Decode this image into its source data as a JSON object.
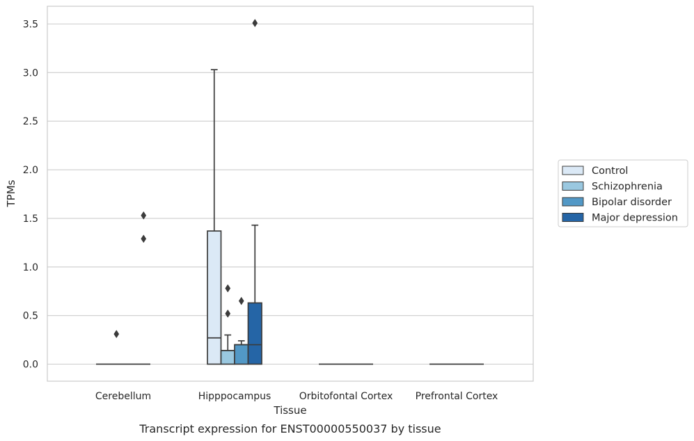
{
  "caption": "Transcript expression for ENST00000550037 by tissue",
  "chart_data": {
    "type": "box",
    "xlabel": "Tissue",
    "ylabel": "TPMs",
    "ylim": [
      -0.17,
      3.68
    ],
    "yticks": [
      "0.0",
      "0.5",
      "1.0",
      "1.5",
      "2.0",
      "2.5",
      "3.0",
      "3.5"
    ],
    "ytick_values": [
      0,
      0.5,
      1.0,
      1.5,
      2.0,
      2.5,
      3.0,
      3.5
    ],
    "grid": "horizontal",
    "legend_position": "right",
    "categories": [
      "Cerebellum",
      "Hipppocampus",
      "Orbitofontal Cortex",
      "Prefrontal Cortex"
    ],
    "series": [
      {
        "name": "Control",
        "color": "#dbe9f6",
        "boxes": [
          {
            "q1": 0,
            "median": 0,
            "q3": 0,
            "whisker_low": 0,
            "whisker_high": 0,
            "outliers": []
          },
          {
            "q1": 0,
            "median": 0.27,
            "q3": 1.37,
            "whisker_low": 0,
            "whisker_high": 3.03,
            "outliers": []
          },
          {
            "q1": 0,
            "median": 0,
            "q3": 0,
            "whisker_low": 0,
            "whisker_high": 0,
            "outliers": []
          },
          {
            "q1": 0,
            "median": 0,
            "q3": 0,
            "whisker_low": 0,
            "whisker_high": 0,
            "outliers": []
          }
        ]
      },
      {
        "name": "Schizophrenia",
        "color": "#9ac8e0",
        "boxes": [
          {
            "q1": 0,
            "median": 0,
            "q3": 0,
            "whisker_low": 0,
            "whisker_high": 0,
            "outliers": [
              0.31
            ]
          },
          {
            "q1": 0,
            "median": 0.14,
            "q3": 0.14,
            "whisker_low": 0,
            "whisker_high": 0.3,
            "outliers": [
              0.52,
              0.78
            ]
          },
          {
            "q1": 0,
            "median": 0,
            "q3": 0,
            "whisker_low": 0,
            "whisker_high": 0,
            "outliers": []
          },
          {
            "q1": 0,
            "median": 0,
            "q3": 0,
            "whisker_low": 0,
            "whisker_high": 0,
            "outliers": []
          }
        ]
      },
      {
        "name": "Bipolar disorder",
        "color": "#5298c6",
        "boxes": [
          {
            "q1": 0,
            "median": 0,
            "q3": 0,
            "whisker_low": 0,
            "whisker_high": 0,
            "outliers": []
          },
          {
            "q1": 0,
            "median": 0.2,
            "q3": 0.2,
            "whisker_low": 0,
            "whisker_high": 0.24,
            "outliers": [
              0.65
            ]
          },
          {
            "q1": 0,
            "median": 0,
            "q3": 0,
            "whisker_low": 0,
            "whisker_high": 0,
            "outliers": []
          },
          {
            "q1": 0,
            "median": 0,
            "q3": 0,
            "whisker_low": 0,
            "whisker_high": 0,
            "outliers": []
          }
        ]
      },
      {
        "name": "Major depression",
        "color": "#2565a6",
        "boxes": [
          {
            "q1": 0,
            "median": 0,
            "q3": 0,
            "whisker_low": 0,
            "whisker_high": 0,
            "outliers": [
              1.29,
              1.53
            ]
          },
          {
            "q1": 0,
            "median": 0.2,
            "q3": 0.63,
            "whisker_low": 0,
            "whisker_high": 1.43,
            "outliers": [
              3.51
            ]
          },
          {
            "q1": 0,
            "median": 0,
            "q3": 0,
            "whisker_low": 0,
            "whisker_high": 0,
            "outliers": []
          },
          {
            "q1": 0,
            "median": 0,
            "q3": 0,
            "whisker_low": 0,
            "whisker_high": 0,
            "outliers": []
          }
        ]
      }
    ]
  }
}
